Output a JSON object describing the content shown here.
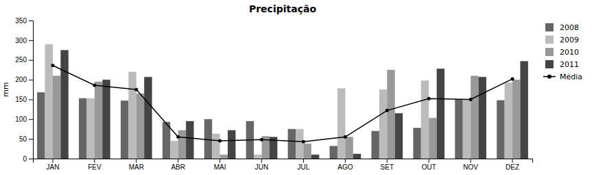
{
  "chart_data": {
    "type": "bar",
    "title": "Precipitação",
    "ylabel": "mm",
    "categories": [
      "JAN",
      "FEV",
      "MAR",
      "ABR",
      "MAI",
      "JUN",
      "JUL",
      "AGO",
      "SET",
      "OUT",
      "NOV",
      "DEZ"
    ],
    "series": [
      {
        "name": "2008",
        "color": "#666666",
        "values": [
          168,
          153,
          147,
          93,
          100,
          95,
          75,
          32,
          70,
          78,
          150,
          148
        ]
      },
      {
        "name": "2009",
        "color": "#bbbbbb",
        "values": [
          290,
          153,
          220,
          45,
          63,
          10,
          75,
          178,
          175,
          198,
          150,
          193
        ]
      },
      {
        "name": "2010",
        "color": "#999999",
        "values": [
          210,
          195,
          165,
          72,
          10,
          57,
          38,
          55,
          225,
          103,
          210,
          200
        ]
      },
      {
        "name": "2011",
        "color": "#444444",
        "values": [
          275,
          200,
          207,
          95,
          72,
          55,
          10,
          12,
          115,
          228,
          207,
          247
        ]
      },
      {
        "name": "Média",
        "type": "line",
        "color": "#000000",
        "marker": "circle",
        "line_style": "solid",
        "values": [
          236,
          186,
          175,
          55,
          45,
          48,
          43,
          55,
          122,
          152,
          150,
          202
        ]
      }
    ],
    "ylim": [
      0,
      350
    ],
    "yticks": [
      0,
      50,
      100,
      150,
      200,
      250,
      300,
      350
    ],
    "grid": false,
    "legend": "right"
  }
}
